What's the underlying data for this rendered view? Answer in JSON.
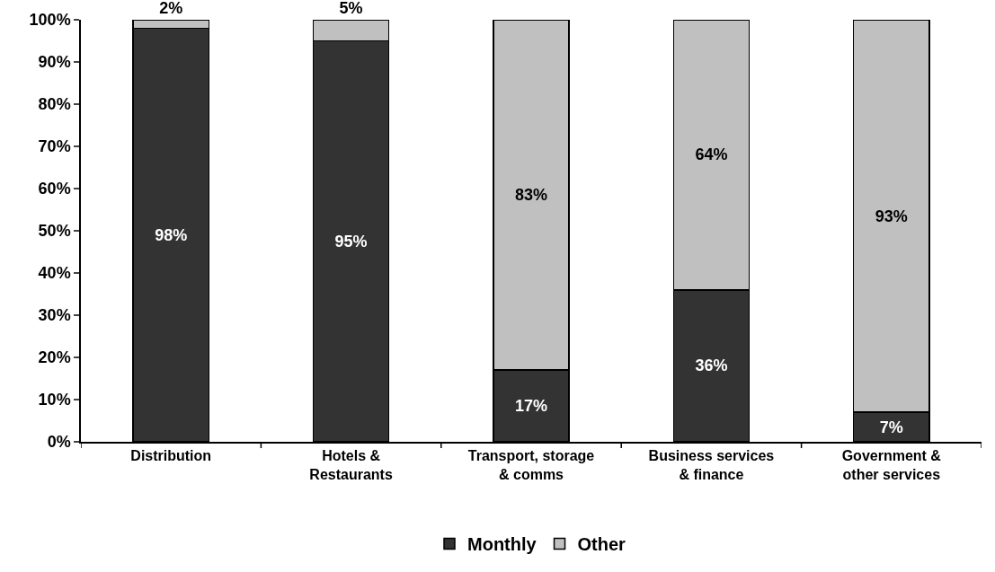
{
  "chart_data": {
    "type": "bar",
    "stacked": true,
    "categories": [
      "Distribution",
      "Hotels &\nRestaurants",
      "Transport, storage\n& comms",
      "Business services\n& finance",
      "Government &\nother services"
    ],
    "series": [
      {
        "name": "Monthly",
        "color": "#333333",
        "values": [
          98,
          95,
          17,
          36,
          7
        ],
        "value_labels": [
          "98%",
          "95%",
          "17%",
          "36%",
          "7%"
        ]
      },
      {
        "name": "Other",
        "color": "#c0c0c0",
        "values": [
          2,
          5,
          83,
          64,
          93
        ],
        "value_labels": [
          "2%",
          "5%",
          "83%",
          "64%",
          "93%"
        ]
      }
    ],
    "ylim": [
      0,
      100
    ],
    "yticks": [
      {
        "value": 0,
        "label": "0%"
      },
      {
        "value": 10,
        "label": "10%"
      },
      {
        "value": 20,
        "label": "20%"
      },
      {
        "value": 30,
        "label": "30%"
      },
      {
        "value": 40,
        "label": "40%"
      },
      {
        "value": 50,
        "label": "50%"
      },
      {
        "value": 60,
        "label": "60%"
      },
      {
        "value": 70,
        "label": "70%"
      },
      {
        "value": 80,
        "label": "80%"
      },
      {
        "value": 90,
        "label": "90%"
      },
      {
        "value": 100,
        "label": "100%"
      }
    ],
    "grid": false,
    "legend": "bottom"
  }
}
